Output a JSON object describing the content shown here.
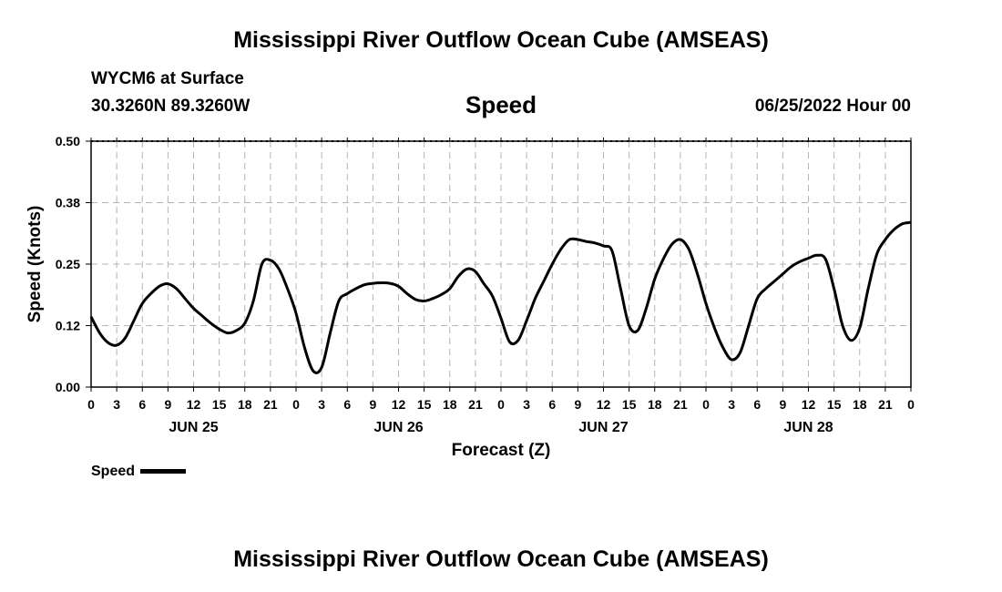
{
  "page": {
    "title_top": "Mississippi River Outflow Ocean Cube (AMSEAS)",
    "title_bottom": "Mississippi River Outflow Ocean Cube (AMSEAS)",
    "station": "WYCM6 at Surface",
    "coords": "30.3260N  89.3260W",
    "chart_title": "Speed",
    "datetime": "06/25/2022 Hour 00"
  },
  "chart_data": {
    "type": "line",
    "title": "Speed",
    "xlabel": "Forecast (Z)",
    "ylabel": "Speed (Knots)",
    "xlim": [
      0,
      96
    ],
    "ylim": [
      0,
      0.5
    ],
    "y_ticks": [
      0.0,
      0.125,
      0.25,
      0.375,
      0.5
    ],
    "y_tick_labels": [
      "0.00",
      "0.12",
      "0.25",
      "0.38",
      "0.50"
    ],
    "x_ticks": [
      0,
      3,
      6,
      9,
      12,
      15,
      18,
      21,
      24,
      27,
      30,
      33,
      36,
      39,
      42,
      45,
      48,
      51,
      54,
      57,
      60,
      63,
      66,
      69,
      72,
      75,
      78,
      81,
      84,
      87,
      90,
      93,
      96
    ],
    "x_tick_labels": [
      "0",
      "3",
      "6",
      "9",
      "12",
      "15",
      "18",
      "21",
      "0",
      "3",
      "6",
      "9",
      "12",
      "15",
      "18",
      "21",
      "0",
      "3",
      "6",
      "9",
      "12",
      "15",
      "18",
      "21",
      "0",
      "3",
      "6",
      "9",
      "12",
      "15",
      "18",
      "21",
      "0"
    ],
    "day_labels": [
      {
        "label": "JUN 25",
        "x": 12
      },
      {
        "label": "JUN 26",
        "x": 36
      },
      {
        "label": "JUN 27",
        "x": 60
      },
      {
        "label": "JUN 28",
        "x": 84
      }
    ],
    "grid": true,
    "legend_position": "bottom-left",
    "series": [
      {
        "name": "Speed",
        "color": "#000000",
        "x": [
          0,
          1,
          2,
          3,
          4,
          5,
          6,
          7,
          8,
          9,
          10,
          11,
          12,
          13,
          14,
          15,
          16,
          17,
          18,
          19,
          20,
          21,
          22,
          23,
          24,
          25,
          26,
          27,
          28,
          29,
          30,
          31,
          32,
          33,
          34,
          35,
          36,
          37,
          38,
          39,
          40,
          41,
          42,
          43,
          44,
          45,
          46,
          47,
          48,
          49,
          50,
          51,
          52,
          53,
          54,
          55,
          56,
          57,
          58,
          59,
          60,
          61,
          62,
          63,
          64,
          65,
          66,
          67,
          68,
          69,
          70,
          71,
          72,
          73,
          74,
          75,
          76,
          77,
          78,
          79,
          80,
          81,
          82,
          83,
          84,
          85,
          86,
          87,
          88,
          89,
          90,
          91,
          92,
          93,
          94,
          95,
          96
        ],
        "values": [
          0.143,
          0.11,
          0.09,
          0.085,
          0.1,
          0.135,
          0.17,
          0.19,
          0.205,
          0.21,
          0.2,
          0.18,
          0.16,
          0.145,
          0.13,
          0.118,
          0.11,
          0.115,
          0.13,
          0.175,
          0.25,
          0.258,
          0.24,
          0.2,
          0.15,
          0.08,
          0.033,
          0.04,
          0.11,
          0.175,
          0.19,
          0.2,
          0.208,
          0.211,
          0.212,
          0.211,
          0.205,
          0.19,
          0.178,
          0.175,
          0.18,
          0.188,
          0.2,
          0.225,
          0.24,
          0.235,
          0.21,
          0.185,
          0.14,
          0.092,
          0.095,
          0.135,
          0.18,
          0.215,
          0.25,
          0.28,
          0.3,
          0.3,
          0.296,
          0.293,
          0.287,
          0.277,
          0.2,
          0.125,
          0.115,
          0.16,
          0.22,
          0.26,
          0.29,
          0.3,
          0.28,
          0.23,
          0.17,
          0.12,
          0.08,
          0.056,
          0.07,
          0.125,
          0.18,
          0.2,
          0.215,
          0.23,
          0.245,
          0.255,
          0.262,
          0.268,
          0.26,
          0.2,
          0.125,
          0.095,
          0.12,
          0.2,
          0.27,
          0.3,
          0.32,
          0.332,
          0.335
        ]
      }
    ]
  },
  "legend": {
    "label": "Speed",
    "color": "#000000"
  }
}
